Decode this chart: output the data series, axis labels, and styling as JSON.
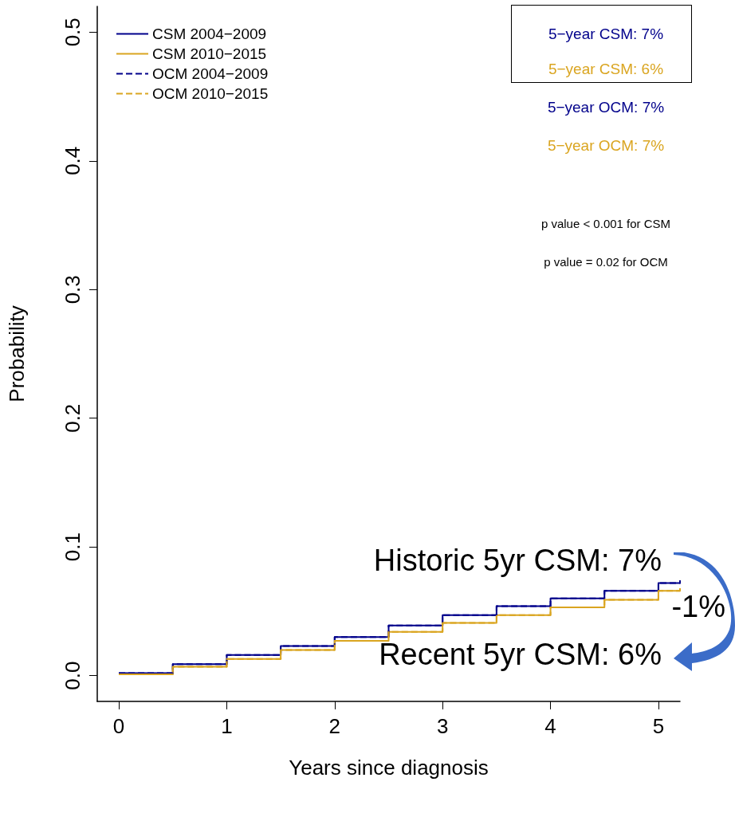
{
  "chart_data": {
    "type": "step",
    "xlabel": "Years since diagnosis",
    "ylabel": "Probability",
    "x": [
      0,
      0.5,
      1,
      1.5,
      2,
      2.5,
      3,
      3.5,
      4,
      4.5,
      5,
      5.2
    ],
    "series": [
      {
        "name": "CSM 2004−2009",
        "color": "#00008b",
        "line_style": "solid",
        "values": [
          0.002,
          0.009,
          0.016,
          0.023,
          0.03,
          0.039,
          0.047,
          0.054,
          0.06,
          0.066,
          0.072,
          0.074
        ]
      },
      {
        "name": "CSM 2010−2015",
        "color": "#daa520",
        "line_style": "solid",
        "values": [
          0.001,
          0.007,
          0.013,
          0.02,
          0.027,
          0.034,
          0.041,
          0.047,
          0.053,
          0.059,
          0.066,
          0.068
        ]
      },
      {
        "name": "OCM 2004−2009",
        "color": "#00008b",
        "line_style": "dashed",
        "values": [
          0.002,
          0.009,
          0.016,
          0.023,
          0.03,
          0.039,
          0.047,
          0.054,
          0.06,
          0.066,
          0.072,
          0.074
        ]
      },
      {
        "name": "OCM 2010−2015",
        "color": "#daa520",
        "line_style": "dashed",
        "values": [
          0.001,
          0.007,
          0.013,
          0.02,
          0.027,
          0.034,
          0.041,
          0.047,
          0.053,
          0.059,
          0.066,
          0.068
        ]
      }
    ],
    "xlim": [
      -0.2,
      5.2
    ],
    "xticks": [
      0,
      1,
      2,
      3,
      4,
      5
    ],
    "ylim": [
      -0.02,
      0.52
    ],
    "yticks": [
      {
        "value": 0,
        "label": "0.0"
      },
      0.1,
      0.2,
      0.3,
      0.4,
      0.5
    ],
    "grid": false,
    "legend": "top left",
    "marker": "none",
    "annotations": [
      "5−year CSM: 7%",
      "5−year CSM: 6%",
      "5−year OCM: 7%",
      "5−year OCM: 7%",
      "p value < 0.001 for CSM",
      "p value = 0.02 for OCM",
      {
        "text": "Historic 5yr CSM: 7%",
        "x": 5,
        "y": 0.072
      },
      "-1%",
      {
        "text": "Recent 5yr CSM: 6%",
        "x": 5,
        "y": 0.066
      }
    ]
  }
}
